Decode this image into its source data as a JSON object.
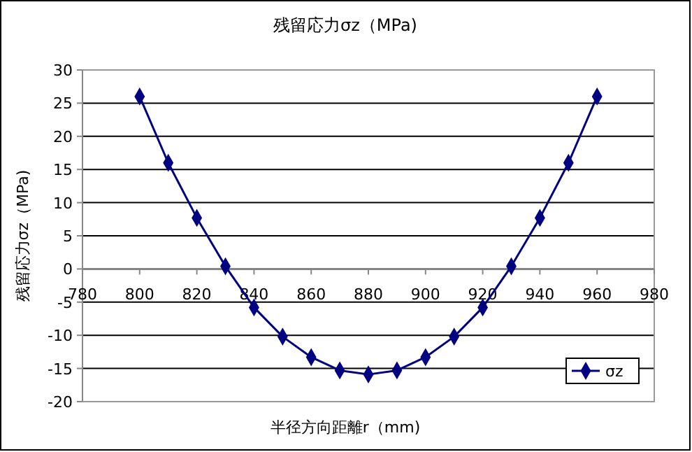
{
  "chart_data": {
    "type": "line",
    "title": "残留応力σz（MPa)",
    "xlabel": "半径方向距離r（mm)",
    "ylabel": "残留応力σz（MPa)",
    "x": [
      800,
      810,
      820,
      830,
      840,
      850,
      860,
      870,
      880,
      890,
      900,
      910,
      920,
      930,
      940,
      950,
      960
    ],
    "series": [
      {
        "name": "σz",
        "color": "#000080",
        "values": [
          26,
          16,
          7.7,
          0.4,
          -5.8,
          -10.2,
          -13.3,
          -15.3,
          -15.9,
          -15.3,
          -13.3,
          -10.2,
          -5.8,
          0.4,
          7.7,
          16,
          26
        ]
      }
    ],
    "xlim": [
      780,
      980
    ],
    "xticks": [
      780,
      800,
      820,
      840,
      860,
      880,
      900,
      920,
      940,
      960,
      980
    ],
    "ylim": [
      -20,
      30
    ],
    "yticks": [
      -20,
      -15,
      -10,
      -5,
      0,
      5,
      10,
      15,
      20,
      25,
      30
    ],
    "grid": "y",
    "legend": "bottom right",
    "marker": "diamond",
    "line_style": "solid"
  }
}
